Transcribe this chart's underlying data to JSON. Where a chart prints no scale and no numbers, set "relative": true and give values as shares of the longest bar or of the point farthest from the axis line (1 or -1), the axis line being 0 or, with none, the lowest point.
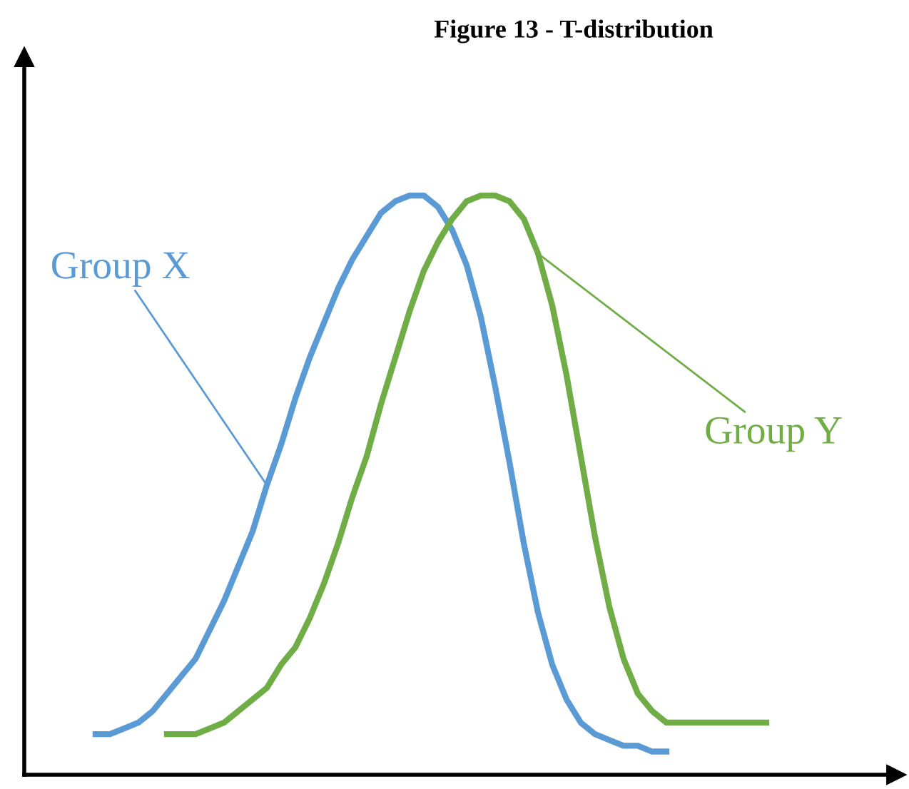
{
  "chart_data": {
    "type": "line",
    "title": "Figure 13 - T-distribution",
    "relative": true,
    "legend": false,
    "marker": "none",
    "line_style": "solid",
    "tick_labels": false,
    "categories": [
      null,
      null,
      null,
      null,
      null,
      null,
      null,
      null,
      null,
      null,
      null,
      null,
      null,
      null,
      null,
      null,
      null,
      null,
      null,
      null,
      null,
      null,
      null,
      null,
      null,
      null,
      null,
      null,
      null,
      null,
      null,
      null,
      null,
      null,
      null,
      null,
      null,
      null,
      null,
      null,
      null,
      null,
      null,
      null,
      null,
      null,
      null,
      null
    ],
    "series": [
      {
        "name": "Group X",
        "color": "#5b9bd5",
        "values": [
          0.07,
          0.07,
          0.08,
          0.09,
          0.11,
          0.14,
          0.17,
          0.2,
          0.25,
          0.3,
          0.36,
          0.42,
          0.5,
          0.57,
          0.65,
          0.72,
          0.78,
          0.84,
          0.89,
          0.93,
          0.97,
          0.99,
          1.0,
          1.0,
          0.98,
          0.94,
          0.88,
          0.79,
          0.67,
          0.54,
          0.4,
          0.28,
          0.19,
          0.13,
          0.09,
          0.07,
          0.06,
          0.05,
          0.05,
          0.04,
          0.04,
          null,
          null,
          null,
          null,
          null,
          null,
          null
        ]
      },
      {
        "name": "Group Y",
        "color": "#70ad47",
        "values": [
          null,
          null,
          null,
          null,
          null,
          0.07,
          0.07,
          0.07,
          0.08,
          0.09,
          0.11,
          0.13,
          0.15,
          0.19,
          0.22,
          0.27,
          0.33,
          0.4,
          0.48,
          0.55,
          0.64,
          0.72,
          0.8,
          0.87,
          0.92,
          0.96,
          0.99,
          1.0,
          1.0,
          0.99,
          0.96,
          0.9,
          0.81,
          0.69,
          0.55,
          0.41,
          0.29,
          0.2,
          0.14,
          0.11,
          0.09,
          0.09,
          0.09,
          0.09,
          0.09,
          0.09,
          0.09,
          0.09
        ]
      }
    ]
  }
}
